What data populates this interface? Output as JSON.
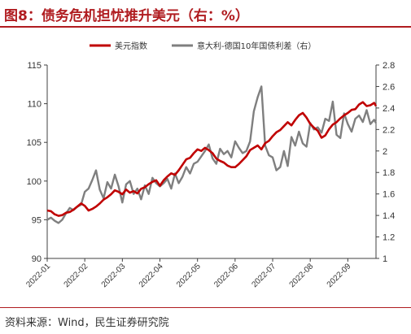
{
  "figure": {
    "title": "图8：债务危机担忧推升美元（右：%）",
    "source": "资料来源：Wind，民生证券研究院"
  },
  "colors": {
    "accent": "#b01c20",
    "dxy_line": "#c00000",
    "spread_line": "#7f7f7f",
    "axis": "#404040"
  },
  "chart_data": {
    "type": "line",
    "title": "图8：债务危机担忧推升美元（右：%）",
    "xlabel": "",
    "ylabel": "",
    "y2label": "",
    "grid": false,
    "legend_position": "top-right",
    "categories": [
      "2022-01",
      "2022-02",
      "2022-03",
      "2022-04",
      "2022-05",
      "2022-06",
      "2022-07",
      "2022-08",
      "2022-09"
    ],
    "xlim": [
      0,
      8.75
    ],
    "ylim": [
      90,
      115
    ],
    "y_ticks": [
      90,
      95,
      100,
      105,
      110,
      115
    ],
    "y2lim": [
      1.0,
      2.8
    ],
    "y2_ticks": [
      "1",
      "1.2",
      "1.4",
      "1.6",
      "1.8",
      "2",
      "2.2",
      "2.4",
      "2.6",
      "2.8"
    ],
    "series": [
      {
        "name": "美元指数",
        "axis": "left",
        "x": [
          0.0,
          0.1,
          0.2,
          0.3,
          0.4,
          0.5,
          0.6,
          0.7,
          0.8,
          0.9,
          1.0,
          1.1,
          1.2,
          1.3,
          1.4,
          1.5,
          1.6,
          1.7,
          1.8,
          1.9,
          2.0,
          2.1,
          2.2,
          2.3,
          2.4,
          2.5,
          2.6,
          2.7,
          2.8,
          2.9,
          3.0,
          3.1,
          3.2,
          3.3,
          3.4,
          3.5,
          3.6,
          3.7,
          3.8,
          3.9,
          4.0,
          4.1,
          4.2,
          4.3,
          4.4,
          4.5,
          4.6,
          4.7,
          4.8,
          4.9,
          5.0,
          5.1,
          5.2,
          5.3,
          5.4,
          5.5,
          5.6,
          5.7,
          5.8,
          5.9,
          6.0,
          6.1,
          6.2,
          6.3,
          6.4,
          6.5,
          6.6,
          6.7,
          6.8,
          6.9,
          7.0,
          7.1,
          7.2,
          7.3,
          7.4,
          7.5,
          7.6,
          7.7,
          7.8,
          7.9,
          8.0,
          8.1,
          8.2,
          8.3,
          8.4,
          8.5,
          8.6,
          8.7,
          8.75
        ],
        "values": [
          96.2,
          96.1,
          95.7,
          95.5,
          95.6,
          95.9,
          96.0,
          96.3,
          96.7,
          97.1,
          96.8,
          96.2,
          96.4,
          96.7,
          97.1,
          97.6,
          97.9,
          98.3,
          98.8,
          98.6,
          98.3,
          98.9,
          98.5,
          98.7,
          98.4,
          99.0,
          99.2,
          99.6,
          99.9,
          100.1,
          99.4,
          100.1,
          100.6,
          101.0,
          100.8,
          101.4,
          102.1,
          102.8,
          103.0,
          103.6,
          104.1,
          103.9,
          104.3,
          104.0,
          103.6,
          102.9,
          102.6,
          102.4,
          102.0,
          101.8,
          101.8,
          102.2,
          102.7,
          103.2,
          104.0,
          104.3,
          104.6,
          104.1,
          104.9,
          105.2,
          105.8,
          106.3,
          106.6,
          107.1,
          107.6,
          107.2,
          107.9,
          108.5,
          108.8,
          108.2,
          107.4,
          106.9,
          106.5,
          105.6,
          105.9,
          106.7,
          107.3,
          107.6,
          108.1,
          108.5,
          108.8,
          109.2,
          109.3,
          109.9,
          110.2,
          109.7,
          109.8,
          110.1,
          109.7
        ]
      },
      {
        "name": "意大利-德国10年国债利差（右）",
        "axis": "right",
        "x": [
          0.0,
          0.1,
          0.2,
          0.3,
          0.4,
          0.5,
          0.6,
          0.7,
          0.8,
          0.9,
          1.0,
          1.1,
          1.2,
          1.3,
          1.4,
          1.5,
          1.6,
          1.7,
          1.8,
          1.9,
          2.0,
          2.1,
          2.2,
          2.3,
          2.4,
          2.5,
          2.6,
          2.7,
          2.8,
          2.9,
          3.0,
          3.1,
          3.2,
          3.3,
          3.4,
          3.5,
          3.6,
          3.7,
          3.8,
          3.9,
          4.0,
          4.1,
          4.2,
          4.3,
          4.4,
          4.5,
          4.6,
          4.7,
          4.8,
          4.9,
          5.0,
          5.1,
          5.2,
          5.3,
          5.4,
          5.5,
          5.6,
          5.7,
          5.8,
          5.9,
          6.0,
          6.1,
          6.2,
          6.3,
          6.4,
          6.5,
          6.6,
          6.7,
          6.8,
          6.9,
          7.0,
          7.1,
          7.2,
          7.3,
          7.4,
          7.5,
          7.6,
          7.7,
          7.8,
          7.9,
          8.0,
          8.1,
          8.2,
          8.3,
          8.4,
          8.5,
          8.6,
          8.7,
          8.75
        ],
        "values": [
          1.36,
          1.38,
          1.35,
          1.33,
          1.36,
          1.42,
          1.47,
          1.45,
          1.48,
          1.5,
          1.62,
          1.65,
          1.73,
          1.82,
          1.64,
          1.56,
          1.71,
          1.65,
          1.78,
          1.67,
          1.52,
          1.69,
          1.72,
          1.6,
          1.65,
          1.55,
          1.68,
          1.6,
          1.75,
          1.7,
          1.67,
          1.7,
          1.74,
          1.65,
          1.79,
          1.7,
          1.76,
          1.85,
          1.79,
          1.88,
          1.9,
          1.95,
          2.0,
          2.06,
          1.93,
          1.88,
          2.02,
          1.97,
          2.0,
          1.94,
          2.09,
          2.03,
          1.98,
          2.0,
          2.09,
          2.37,
          2.5,
          2.6,
          2.05,
          1.96,
          1.94,
          1.82,
          1.85,
          2.0,
          1.86,
          2.13,
          2.05,
          2.18,
          2.07,
          2.04,
          2.26,
          2.2,
          2.22,
          2.17,
          2.3,
          2.28,
          2.46,
          2.15,
          2.12,
          2.35,
          2.25,
          2.18,
          2.3,
          2.33,
          2.27,
          2.38,
          2.25,
          2.29,
          2.26
        ]
      }
    ]
  }
}
